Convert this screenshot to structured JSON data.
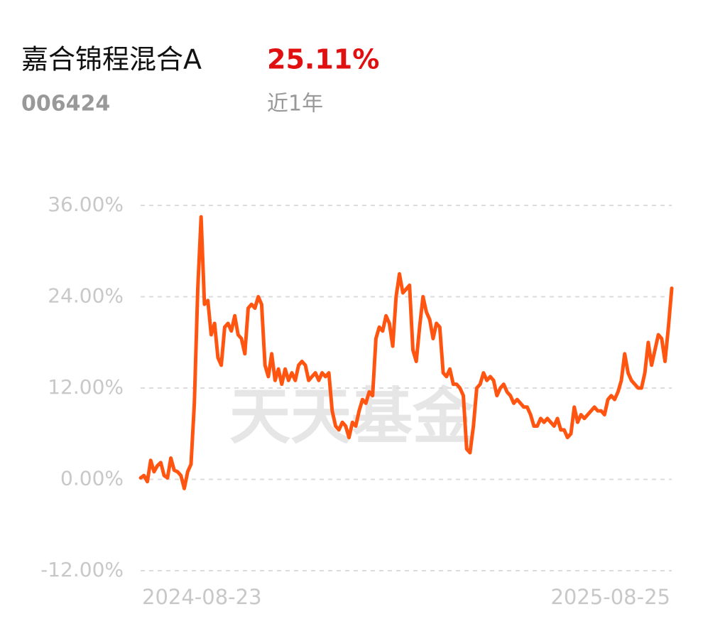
{
  "header": {
    "fund_name": "嘉合锦程混合A",
    "return": "25.11%",
    "code": "006424",
    "period": "近1年"
  },
  "chart_data": {
    "type": "line",
    "watermark": "天天基金",
    "color": "#ff5511",
    "categories": [
      "2024-08-23",
      null,
      null,
      null,
      null,
      null,
      null,
      null,
      null,
      null,
      null,
      null,
      null,
      null,
      null,
      null,
      null,
      null,
      null,
      null,
      null,
      null,
      null,
      null,
      null,
      null,
      null,
      null,
      null,
      null,
      null,
      null,
      null,
      null,
      null,
      null,
      null,
      null,
      null,
      null,
      null,
      null,
      null,
      null,
      null,
      null,
      null,
      null,
      null,
      null,
      null,
      null,
      null,
      null,
      null,
      null,
      null,
      null,
      null,
      null,
      null,
      null,
      null,
      null,
      null,
      null,
      null,
      null,
      null,
      null,
      null,
      null,
      null,
      null,
      null,
      null,
      null,
      null,
      null,
      null,
      null,
      null,
      null,
      null,
      null,
      null,
      null,
      null,
      null,
      null,
      null,
      null,
      null,
      null,
      null,
      null,
      null,
      null,
      null,
      null,
      null,
      null,
      null,
      null,
      null,
      null,
      null,
      null,
      null,
      null,
      null,
      null,
      null,
      null,
      null,
      null,
      null,
      null,
      null,
      null,
      null,
      null,
      null,
      null,
      null,
      null,
      null,
      null,
      null,
      null,
      null,
      null,
      null,
      null,
      null,
      null,
      null,
      null,
      null,
      null,
      null,
      null,
      null,
      null,
      null,
      null,
      null,
      null,
      null,
      null,
      null,
      null,
      null,
      null,
      null,
      null,
      null,
      null,
      "2025-08-25"
    ],
    "values": [
      0.2,
      0.5,
      -0.3,
      2.5,
      1.0,
      1.8,
      2.2,
      0.5,
      0.2,
      2.8,
      1.2,
      1.0,
      0.5,
      -1.2,
      1.0,
      2.0,
      10,
      25,
      34.5,
      23,
      23.5,
      19,
      20.5,
      16,
      15,
      20,
      20.5,
      19.5,
      21.5,
      19,
      18.5,
      16.5,
      22.5,
      23,
      22.5,
      24,
      23,
      15,
      13.5,
      16.5,
      13,
      14.5,
      12.5,
      14.5,
      13,
      14,
      13,
      15,
      15.5,
      15,
      13,
      13.5,
      14,
      13,
      14,
      13.5,
      14,
      9,
      7,
      6.5,
      7.5,
      7,
      5.5,
      7.5,
      7,
      9,
      10.5,
      10,
      11.5,
      11,
      18.5,
      20,
      19.5,
      21.5,
      20.5,
      17.5,
      24,
      27,
      24.5,
      25,
      25.5,
      17,
      15.5,
      20,
      24,
      22,
      21,
      18.5,
      20.5,
      20,
      14,
      13.5,
      14.5,
      12.5,
      12.5,
      12,
      11,
      4,
      3.5,
      7,
      12,
      12.5,
      14,
      13,
      13.5,
      13,
      11,
      12,
      12.5,
      11.5,
      11,
      10,
      10.5,
      10,
      9.5,
      9.5,
      8.5,
      7,
      7,
      8,
      7.5,
      8,
      7.5,
      7,
      8,
      6.5,
      6.5,
      5.5,
      6,
      9.5,
      7.5,
      8.5,
      8,
      8.5,
      9,
      9.5,
      9,
      9,
      8.5,
      10.5,
      11,
      10.5,
      11.5,
      13,
      16.5,
      14,
      13,
      12.5,
      12,
      12,
      14,
      18,
      15,
      17,
      19,
      18.5,
      15.5,
      20,
      25.11
    ],
    "ylim": [
      -12,
      36
    ],
    "yticks": [
      {
        "value": -12,
        "label": "-12.00%"
      },
      {
        "value": 0,
        "label": "0.00%"
      },
      {
        "value": 12,
        "label": "12.00%"
      },
      {
        "value": 24,
        "label": "24.00%"
      },
      {
        "value": 36,
        "label": "36.00%"
      }
    ],
    "grid": true
  }
}
